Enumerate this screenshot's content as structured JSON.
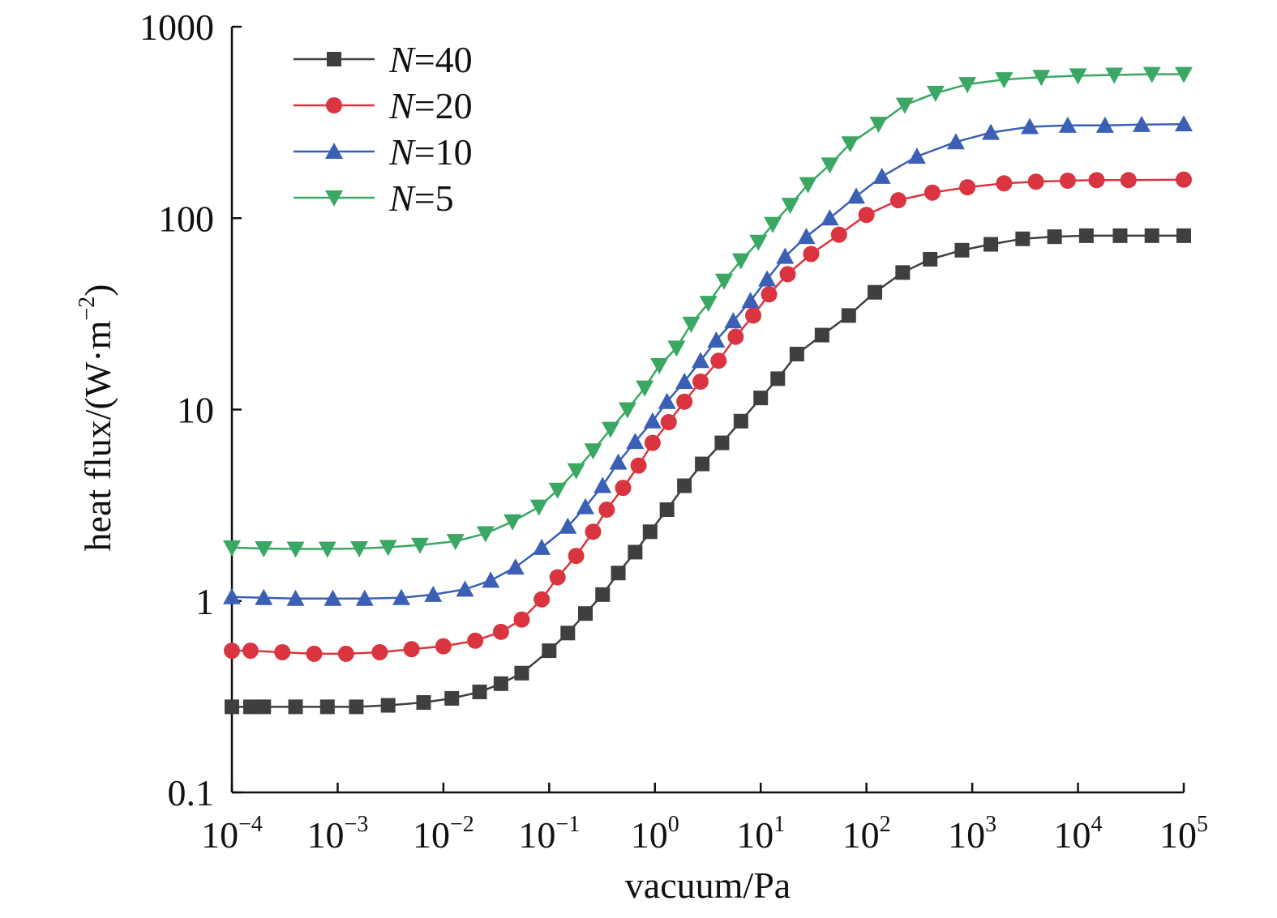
{
  "chart_data": {
    "type": "line",
    "xscale": "log",
    "yscale": "log",
    "xlim": [
      0.0001,
      100000
    ],
    "ylim": [
      0.1,
      1000
    ],
    "xlabel": "vacuum/Pa",
    "ylabel": "heat flux/(W·m⁻²)",
    "ylabel_parts": {
      "prefix": "heat flux/(W·m",
      "sup": "−2",
      "suffix": ")"
    },
    "xticks": [
      {
        "value": 0.0001,
        "base": "10",
        "exp": "−4"
      },
      {
        "value": 0.001,
        "base": "10",
        "exp": "−3"
      },
      {
        "value": 0.01,
        "base": "10",
        "exp": "−2"
      },
      {
        "value": 0.1,
        "base": "10",
        "exp": "−1"
      },
      {
        "value": 1,
        "base": "10",
        "exp": "0"
      },
      {
        "value": 10,
        "base": "10",
        "exp": "1"
      },
      {
        "value": 100,
        "base": "10",
        "exp": "2"
      },
      {
        "value": 1000,
        "base": "10",
        "exp": "3"
      },
      {
        "value": 10000,
        "base": "10",
        "exp": "4"
      },
      {
        "value": 100000,
        "base": "10",
        "exp": "5"
      }
    ],
    "yticks": [
      {
        "value": 0.1,
        "label": "0.1"
      },
      {
        "value": 1,
        "label": "1"
      },
      {
        "value": 10,
        "label": "10"
      },
      {
        "value": 100,
        "label": "100"
      },
      {
        "value": 1000,
        "label": "1000"
      }
    ],
    "grid": false,
    "legend_position": "top-left",
    "series": [
      {
        "name": "N=40",
        "name_var": "N",
        "name_rest": "=40",
        "color": "#3f3f3f",
        "marker": "square",
        "x": [
          0.0001,
          0.00015,
          0.0002,
          0.0004,
          0.0008,
          0.0015,
          0.003,
          0.0065,
          0.012,
          0.022,
          0.035,
          0.055,
          0.1,
          0.15,
          0.22,
          0.32,
          0.45,
          0.65,
          0.9,
          1.3,
          1.9,
          2.8,
          4.3,
          6.5,
          10,
          14.5,
          22,
          38,
          68,
          120,
          220,
          400,
          800,
          1500,
          3000,
          6000,
          12000,
          25000,
          50000,
          100000
        ],
        "y": [
          0.28,
          0.28,
          0.28,
          0.28,
          0.28,
          0.28,
          0.285,
          0.295,
          0.31,
          0.335,
          0.37,
          0.42,
          0.55,
          0.68,
          0.86,
          1.08,
          1.4,
          1.8,
          2.3,
          3.0,
          4.0,
          5.2,
          6.7,
          8.7,
          11.5,
          14.5,
          19.5,
          24.5,
          31,
          41,
          52,
          61,
          68,
          73,
          78,
          80,
          81,
          81,
          81,
          81
        ]
      },
      {
        "name": "N=20",
        "name_var": "N",
        "name_rest": "=20",
        "color": "#d9343f",
        "marker": "circle",
        "x": [
          0.0001,
          0.00015,
          0.0003,
          0.0006,
          0.0012,
          0.0025,
          0.005,
          0.01,
          0.02,
          0.035,
          0.055,
          0.085,
          0.12,
          0.18,
          0.26,
          0.35,
          0.5,
          0.7,
          0.95,
          1.35,
          1.9,
          2.7,
          4,
          5.8,
          8.5,
          12,
          18,
          30,
          55,
          100,
          200,
          420,
          900,
          2000,
          4000,
          8000,
          15000,
          30000,
          100000
        ],
        "y": [
          0.55,
          0.55,
          0.54,
          0.53,
          0.53,
          0.54,
          0.56,
          0.58,
          0.62,
          0.69,
          0.8,
          1.02,
          1.33,
          1.72,
          2.3,
          3.0,
          3.9,
          5.1,
          6.7,
          8.6,
          11,
          14,
          18,
          24,
          31,
          40,
          51,
          65,
          82,
          104,
          124,
          136,
          145,
          152,
          155,
          157,
          158,
          158,
          159
        ]
      },
      {
        "name": "N=10",
        "name_var": "N",
        "name_rest": "=10",
        "color": "#3a5fb5",
        "marker": "triangle-up",
        "x": [
          0.0001,
          0.0002,
          0.0004,
          0.0009,
          0.0018,
          0.004,
          0.008,
          0.016,
          0.028,
          0.048,
          0.085,
          0.15,
          0.22,
          0.32,
          0.45,
          0.65,
          0.95,
          1.3,
          1.9,
          2.7,
          3.8,
          5.5,
          8,
          11.5,
          17,
          27,
          45,
          80,
          140,
          300,
          700,
          1500,
          3500,
          8000,
          18000,
          40000,
          100000
        ],
        "y": [
          1.05,
          1.04,
          1.03,
          1.03,
          1.03,
          1.04,
          1.08,
          1.15,
          1.28,
          1.5,
          1.9,
          2.45,
          3.1,
          4.0,
          5.3,
          6.8,
          8.7,
          11,
          14,
          18,
          23,
          29,
          37,
          48,
          63,
          80,
          100,
          130,
          165,
          210,
          250,
          280,
          300,
          305,
          305,
          308,
          310
        ]
      },
      {
        "name": "N=5",
        "name_var": "N",
        "name_rest": "=5",
        "color": "#3aa864",
        "marker": "triangle-down",
        "x": [
          0.0001,
          0.0002,
          0.0004,
          0.0008,
          0.0016,
          0.003,
          0.006,
          0.013,
          0.025,
          0.045,
          0.08,
          0.12,
          0.18,
          0.26,
          0.38,
          0.55,
          0.8,
          1.1,
          1.6,
          2.2,
          3.2,
          4.5,
          6.5,
          9.5,
          13,
          19,
          28,
          45,
          70,
          130,
          230,
          450,
          900,
          2000,
          4500,
          10000,
          22000,
          50000,
          100000
        ],
        "y": [
          1.9,
          1.88,
          1.87,
          1.87,
          1.88,
          1.91,
          1.96,
          2.05,
          2.25,
          2.6,
          3.1,
          3.8,
          4.8,
          6.1,
          7.9,
          10,
          13,
          17,
          21,
          28,
          36,
          47,
          60,
          75,
          93,
          117,
          150,
          190,
          245,
          310,
          390,
          450,
          500,
          530,
          545,
          555,
          560,
          565,
          565
        ]
      }
    ]
  }
}
